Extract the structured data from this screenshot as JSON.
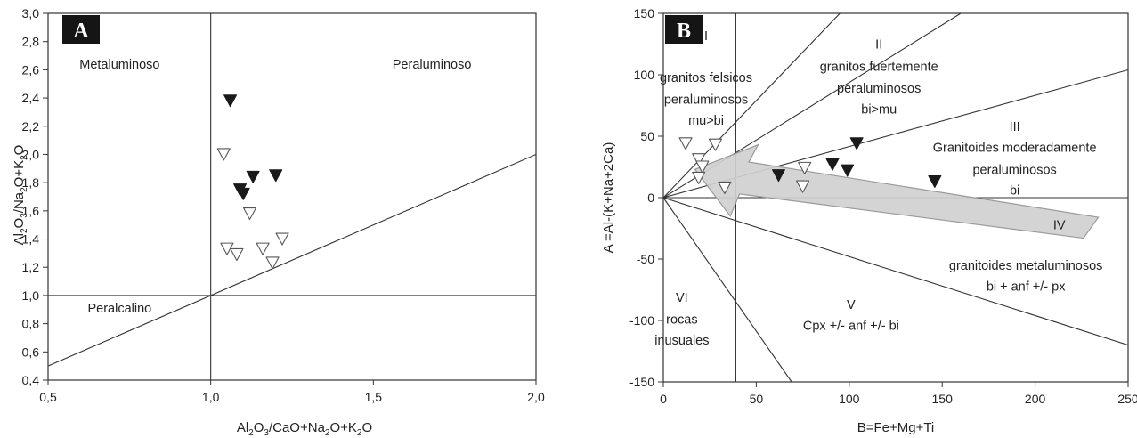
{
  "chart_data": [
    {
      "type": "scatter",
      "panel": "A",
      "xlabel": {
        "pre": "Al",
        "s1": "2",
        "mid1": "O",
        "s2": "3",
        "mid2": "/CaO+Na",
        "s3": "2",
        "mid3": "O+K",
        "s4": "2",
        "post": "O"
      },
      "ylabel": {
        "pre": "Al",
        "s1": "2",
        "mid1": "O",
        "s2": "3",
        "mid2": "/Na",
        "s3": "2",
        "mid3": "O+K",
        "s4": "2",
        "post": "O"
      },
      "xlim": [
        0.5,
        2.0
      ],
      "ylim": [
        0.4,
        3.0
      ],
      "x_ticks": [
        {
          "value": 0.5,
          "label": "0,5"
        },
        {
          "value": 1.0,
          "label": "1,0"
        },
        {
          "value": 1.5,
          "label": "1,5"
        },
        {
          "value": 2.0,
          "label": "2,0"
        }
      ],
      "y_ticks": [
        {
          "value": 0.4,
          "label": "0,4"
        },
        {
          "value": 0.6,
          "label": "0,6"
        },
        {
          "value": 0.8,
          "label": "0,8"
        },
        {
          "value": 1.0,
          "label": "1,0"
        },
        {
          "value": 1.2,
          "label": "1,2"
        },
        {
          "value": 1.4,
          "label": "1,4"
        },
        {
          "value": 1.6,
          "label": "1,6"
        },
        {
          "value": 1.8,
          "label": "1,8"
        },
        {
          "value": 2.0,
          "label": "2,0"
        },
        {
          "value": 2.2,
          "label": "2,2"
        },
        {
          "value": 2.4,
          "label": "2,4"
        },
        {
          "value": 2.6,
          "label": "2,6"
        },
        {
          "value": 2.8,
          "label": "2,8"
        },
        {
          "value": 3.0,
          "label": "3,0"
        }
      ],
      "region_labels": [
        {
          "text": "Metaluminoso",
          "x": 0.72,
          "y": 2.64
        },
        {
          "text": "Peraluminoso",
          "x": 1.68,
          "y": 2.64
        },
        {
          "text": "Peralcalino",
          "x": 0.72,
          "y": 0.91
        }
      ],
      "lines": [
        {
          "x1": 1.0,
          "y1": 0.4,
          "x2": 1.0,
          "y2": 3.0
        },
        {
          "x1": 0.5,
          "y1": 1.0,
          "x2": 2.0,
          "y2": 1.0
        },
        {
          "x1": 0.5,
          "y1": 0.5,
          "x2": 2.0,
          "y2": 2.0
        }
      ],
      "series": [
        {
          "marker": "filled-triangle-down",
          "points": [
            [
              1.06,
              2.38
            ],
            [
              1.13,
              1.84
            ],
            [
              1.2,
              1.85
            ],
            [
              1.09,
              1.75
            ],
            [
              1.1,
              1.72
            ]
          ]
        },
        {
          "marker": "open-triangle-down",
          "points": [
            [
              1.04,
              2.0
            ],
            [
              1.12,
              1.58
            ],
            [
              1.05,
              1.33
            ],
            [
              1.08,
              1.29
            ],
            [
              1.16,
              1.33
            ],
            [
              1.22,
              1.4
            ],
            [
              1.19,
              1.23
            ]
          ]
        }
      ]
    },
    {
      "type": "scatter",
      "panel": "B",
      "xlabel": "B=Fe+Mg+Ti",
      "ylabel": "A =Al-(K+Na+2Ca)",
      "xlim": [
        0,
        250
      ],
      "ylim": [
        -150,
        150
      ],
      "x_ticks": [
        {
          "value": 0,
          "label": "0"
        },
        {
          "value": 50,
          "label": "50"
        },
        {
          "value": 100,
          "label": "100"
        },
        {
          "value": 150,
          "label": "150"
        },
        {
          "value": 200,
          "label": "200"
        },
        {
          "value": 250,
          "label": "250"
        }
      ],
      "y_ticks": [
        {
          "value": 150,
          "label": "150"
        },
        {
          "value": 100,
          "label": "100"
        },
        {
          "value": 50,
          "label": "50"
        },
        {
          "value": 0,
          "label": "0"
        },
        {
          "value": -50,
          "label": "-50"
        },
        {
          "value": -100,
          "label": "-100"
        },
        {
          "value": -150,
          "label": "-150"
        }
      ],
      "region_labels": [
        {
          "x": 23,
          "lines": [
            {
              "text": "I",
              "y": 132
            },
            {
              "text": "granitos felsicos",
              "y": 98
            },
            {
              "text": "peraluminosos",
              "y": 80
            },
            {
              "text": "mu>bi",
              "y": 63
            }
          ]
        },
        {
          "x": 116,
          "lines": [
            {
              "text": "II",
              "y": 125
            },
            {
              "text": "granitos fuertemente",
              "y": 107
            },
            {
              "text": "peraluminosos",
              "y": 89
            },
            {
              "text": "bi>mu",
              "y": 72
            }
          ]
        },
        {
          "x": 189,
          "lines": [
            {
              "text": "III",
              "y": 58
            },
            {
              "text": "Granitoides moderadamente",
              "y": 41
            },
            {
              "text": "peraluminosos",
              "y": 23
            },
            {
              "text": "bi",
              "y": 6
            }
          ]
        },
        {
          "x": 213,
          "lines": [
            {
              "text": "IV",
              "y": -22
            }
          ]
        },
        {
          "x": 195,
          "lines": [
            {
              "text": "granitoides metaluminosos",
              "y": -55
            },
            {
              "text": "bi + anf +/- px",
              "y": -72
            }
          ]
        },
        {
          "x": 101,
          "lines": [
            {
              "text": "V",
              "y": -87
            },
            {
              "text": "Cpx +/- anf +/- bi",
              "y": -104
            }
          ]
        },
        {
          "x": 10,
          "lines": [
            {
              "text": "VI",
              "y": -81
            },
            {
              "text": "rocas",
              "y": -99
            },
            {
              "text": "inusuales",
              "y": -116
            }
          ]
        }
      ],
      "lines": [
        {
          "x1": 0,
          "y1": 0,
          "x2": 95,
          "y2": 150
        },
        {
          "x1": 0,
          "y1": 0,
          "x2": 160,
          "y2": 150
        },
        {
          "x1": 0,
          "y1": 0,
          "x2": 250,
          "y2": 104
        },
        {
          "x1": 0,
          "y1": 0,
          "x2": 250,
          "y2": 0
        },
        {
          "x1": 0,
          "y1": 0,
          "x2": 250,
          "y2": -120
        },
        {
          "x1": 0,
          "y1": 0,
          "x2": 69,
          "y2": -150
        },
        {
          "x1": 39,
          "y1": -150,
          "x2": 39,
          "y2": 150
        }
      ],
      "arrow": {
        "fill": "#d0d0d0",
        "stroke": "#9a9a9a",
        "points": [
          [
            234,
            -16
          ],
          [
            46,
            29
          ],
          [
            51,
            43
          ],
          [
            17,
            23
          ],
          [
            36,
            -15
          ],
          [
            41,
            3
          ],
          [
            226,
            -33
          ]
        ]
      },
      "series": [
        {
          "marker": "filled-triangle-down",
          "points": [
            [
              104,
              44
            ],
            [
              91,
              27
            ],
            [
              99,
              22
            ],
            [
              62,
              18
            ],
            [
              146,
              13
            ]
          ]
        },
        {
          "marker": "open-triangle-down",
          "points": [
            [
              12,
              44
            ],
            [
              28,
              43
            ],
            [
              19,
              31
            ],
            [
              21,
              25
            ],
            [
              19,
              16
            ],
            [
              33,
              8
            ],
            [
              76,
              24
            ],
            [
              75,
              9
            ]
          ]
        }
      ]
    }
  ]
}
